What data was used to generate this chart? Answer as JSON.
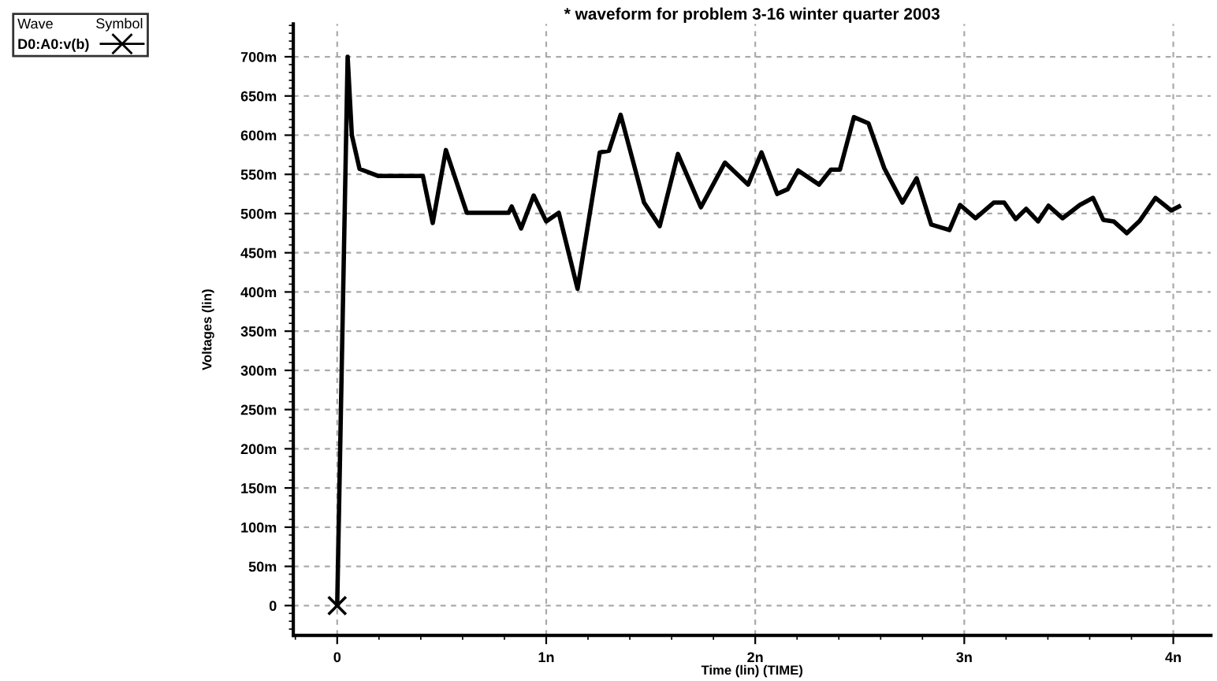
{
  "chart_data": {
    "type": "line",
    "title": "* waveform for problem 3-16 winter quarter 2003",
    "xlabel": "Time (lin) (TIME)",
    "ylabel": "Voltages (lin)",
    "legend_title": "Wave",
    "annotations": [
      "Symbol"
    ],
    "legend": "top left",
    "grid": true,
    "line_style": "solid",
    "xlim": [
      -0.21,
      4.18
    ],
    "xticks": [
      0,
      {
        "value": 1,
        "label": "1n"
      },
      {
        "value": 2,
        "label": "2n"
      },
      {
        "value": 3,
        "label": "3n"
      },
      {
        "value": 4,
        "label": "4n"
      }
    ],
    "ylim": [
      -38,
      742
    ],
    "yticks": [
      0,
      {
        "value": 50,
        "label": "50m"
      },
      {
        "value": 100,
        "label": "100m"
      },
      {
        "value": 150,
        "label": "150m"
      },
      {
        "value": 200,
        "label": "200m"
      },
      {
        "value": 250,
        "label": "250m"
      },
      {
        "value": 300,
        "label": "300m"
      },
      {
        "value": 350,
        "label": "350m"
      },
      {
        "value": 400,
        "label": "400m"
      },
      {
        "value": 450,
        "label": "450m"
      },
      {
        "value": 500,
        "label": "500m"
      },
      {
        "value": 550,
        "label": "550m"
      },
      {
        "value": 600,
        "label": "600m"
      },
      {
        "value": 650,
        "label": "650m"
      },
      {
        "value": 700,
        "label": "700m"
      }
    ],
    "series": [
      {
        "name": "D0:A0:v(b)",
        "color": "#000000",
        "x": [
          0,
          0.05,
          0.07,
          0.107,
          0.195,
          0.41,
          0.457,
          0.52,
          0.62,
          0.82,
          0.835,
          0.88,
          0.94,
          1.0,
          1.06,
          1.15,
          1.256,
          1.3,
          1.356,
          1.468,
          1.543,
          1.63,
          1.74,
          1.855,
          1.966,
          2.03,
          2.105,
          2.155,
          2.205,
          2.305,
          2.362,
          2.405,
          2.472,
          2.542,
          2.617,
          2.704,
          2.772,
          2.842,
          2.929,
          2.98,
          3.054,
          3.141,
          3.191,
          3.246,
          3.296,
          3.353,
          3.403,
          3.47,
          3.553,
          3.616,
          3.665,
          3.715,
          3.778,
          3.84,
          3.915,
          3.99,
          4.027
        ],
        "values": [
          0,
          700,
          600,
          557,
          548,
          548,
          488,
          581,
          501,
          501,
          509,
          481,
          523,
          490,
          501,
          404,
          578,
          580,
          626,
          514,
          484,
          576,
          508,
          565,
          537,
          578,
          525,
          531,
          555,
          537,
          556,
          556,
          623,
          615,
          558,
          514,
          545,
          486,
          479,
          511,
          494,
          514,
          514,
          493,
          506,
          490,
          510,
          494,
          511,
          520,
          492,
          490,
          475,
          491,
          520,
          504,
          509
        ]
      },
      {
        "type": "scatter",
        "marker": "cross",
        "color": "#000000",
        "x": [
          0
        ],
        "values": [
          0
        ]
      }
    ]
  }
}
